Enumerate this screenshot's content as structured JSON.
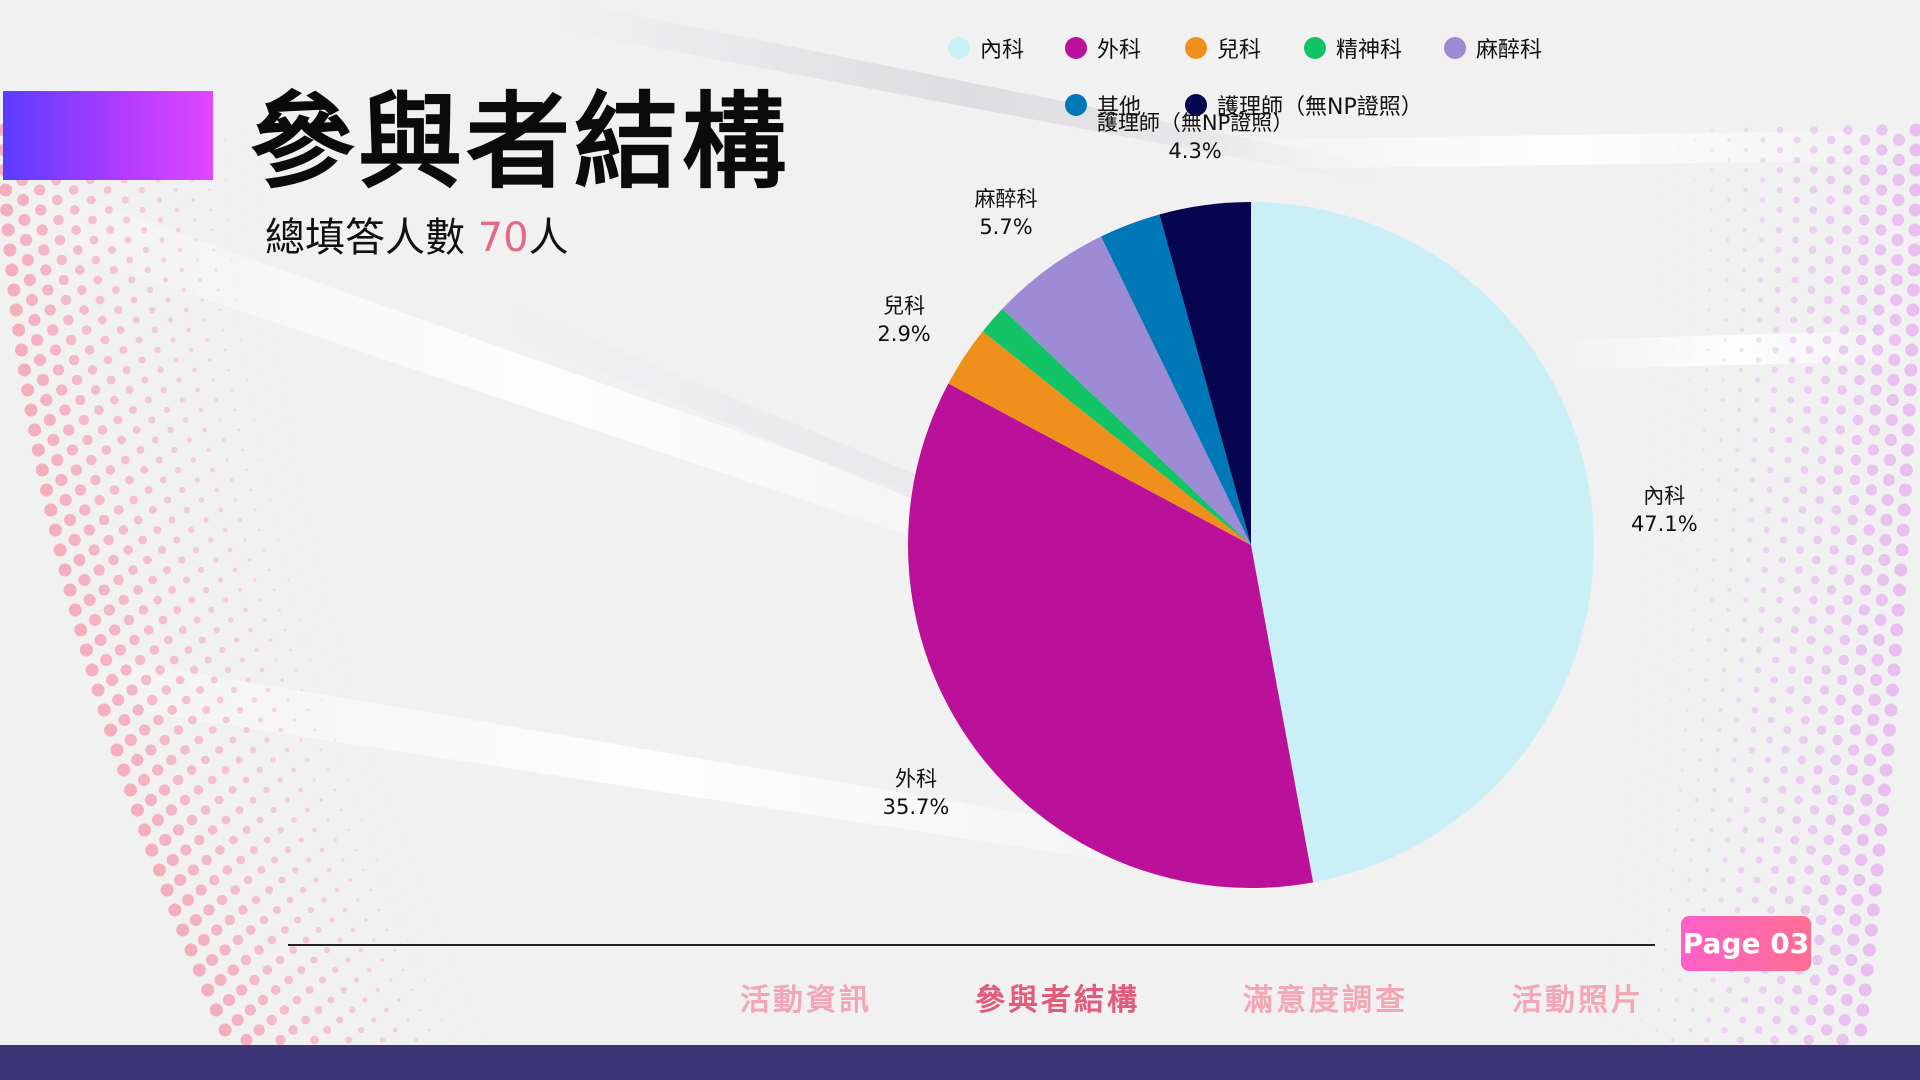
{
  "header": {
    "title": "參與者結構",
    "subtitle_prefix": "總填答人數 ",
    "subtitle_count": "70",
    "subtitle_suffix": "人"
  },
  "colors": {
    "accent_gradient_start": "#5a3cff",
    "accent_gradient_end": "#e146ff",
    "count_highlight": "#e26a82",
    "footer_band": "#3b3578",
    "badge_gradient_start": "#ff5fc8",
    "badge_gradient_end": "#ff6f93"
  },
  "chart_data": {
    "type": "pie",
    "title": "",
    "legend_position": "top",
    "start_angle_deg": 0,
    "direction": "clockwise",
    "slices": [
      {
        "label": "內科",
        "value": 47.1,
        "display": "47.1%",
        "color": "#cbeff7"
      },
      {
        "label": "外科",
        "value": 35.7,
        "display": "35.7%",
        "color": "#bb1099"
      },
      {
        "label": "兒科",
        "value": 2.9,
        "display": "2.9%",
        "color": "#f0901c"
      },
      {
        "label": "精神科",
        "value": 1.4,
        "display": "",
        "color": "#12c466"
      },
      {
        "label": "麻醉科",
        "value": 5.7,
        "display": "5.7%",
        "color": "#9d8bd6"
      },
      {
        "label": "其他",
        "value": 2.9,
        "display": "",
        "color": "#0077b6"
      },
      {
        "label": "護理師（無NP證照）",
        "value": 4.3,
        "display": "4.3%",
        "color": "#06054f"
      }
    ]
  },
  "nav": {
    "items": [
      {
        "label": "活動資訊",
        "active": false
      },
      {
        "label": "參與者結構",
        "active": true
      },
      {
        "label": "滿意度調查",
        "active": false
      },
      {
        "label": "活動照片",
        "active": false
      }
    ]
  },
  "page_badge": "Page 03"
}
